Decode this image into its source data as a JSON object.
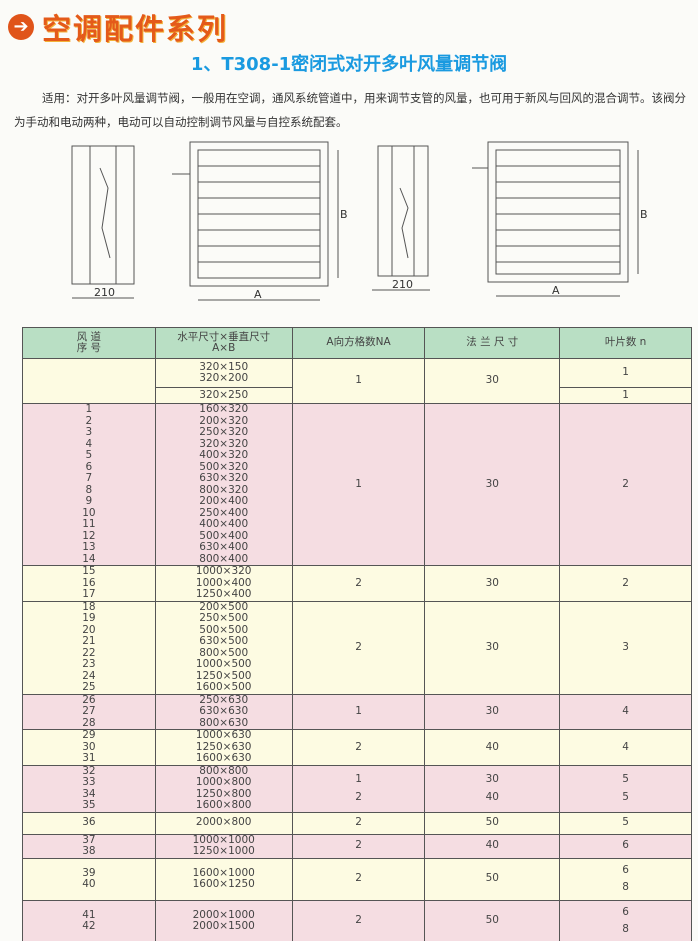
{
  "header": {
    "series_title": "空调配件系列",
    "arrow_icon": "arrow-right-circle-icon",
    "title": "1、T308-1密闭式对开多叶风量调节阀"
  },
  "description": "适用：对开多叶风量调节阀，一般用在空调，通风系统管道中，用来调节支管的风量，也可用于新风与回风的混合调节。该阀分为手动和电动两种，电动可以自动控制调节风量与自控系统配套。",
  "drawings": {
    "dim_depth": "210",
    "dim_width": "A",
    "dim_height": "B"
  },
  "colors": {
    "title": "#e45a1a",
    "subtitle": "#1a9ae0",
    "header_bg": "#b9dfc4",
    "row_yellow": "#fdfbe2",
    "row_pink": "#f5dde2"
  },
  "table": {
    "headers": [
      "风 道\n序 号",
      "水平尺寸×垂直尺寸\nA×B",
      "A向方格数NA",
      "法 兰 尺 寸",
      "叶片数 n"
    ],
    "groups": [
      {
        "bg": "y",
        "no": [],
        "sizes": [
          [
            "320×150",
            "320×200"
          ],
          [
            "320×250"
          ]
        ],
        "na": [
          "1"
        ],
        "flange": [
          "30"
        ],
        "n": [
          "1",
          "1"
        ],
        "split": true
      },
      {
        "bg": "p",
        "no": [
          "1",
          "2",
          "3",
          "4",
          "5",
          "6",
          "7",
          "8",
          "9",
          "10",
          "11",
          "12",
          "13",
          "14"
        ],
        "sizes": [
          [
            "160×320",
            "200×320",
            "250×320",
            "320×320",
            "400×320",
            "500×320",
            "630×320",
            "800×320",
            "200×400",
            "250×400",
            "400×400",
            "500×400",
            "630×400",
            "800×400"
          ]
        ],
        "na": [
          "1"
        ],
        "flange": [
          "30"
        ],
        "n": [
          "2"
        ]
      },
      {
        "bg": "y",
        "no": [
          "15",
          "16",
          "17"
        ],
        "sizes": [
          [
            "1000×320",
            "1000×400",
            "1250×400"
          ]
        ],
        "na": [
          "2"
        ],
        "flange": [
          "30"
        ],
        "n": [
          "2"
        ]
      },
      {
        "bg": "y",
        "no": [
          "18",
          "19",
          "20",
          "21",
          "22",
          "23",
          "24",
          "25"
        ],
        "sizes": [
          [
            "200×500",
            "250×500",
            "500×500",
            "630×500",
            "800×500",
            "1000×500",
            "1250×500",
            "1600×500"
          ]
        ],
        "na": [
          "2"
        ],
        "flange": [
          "30"
        ],
        "n": [
          "3"
        ]
      },
      {
        "bg": "p",
        "no": [
          "26",
          "27",
          "28"
        ],
        "sizes": [
          [
            "250×630",
            "630×630",
            "800×630"
          ]
        ],
        "na": [
          "1"
        ],
        "flange": [
          "30"
        ],
        "n": [
          "4"
        ]
      },
      {
        "bg": "y",
        "no": [
          "29",
          "30",
          "31"
        ],
        "sizes": [
          [
            "1000×630",
            "1250×630",
            "1600×630"
          ]
        ],
        "na": [
          "2"
        ],
        "flange": [
          "40"
        ],
        "n": [
          "4"
        ]
      },
      {
        "bg": "p",
        "no": [
          "32",
          "33",
          "34",
          "35"
        ],
        "sizes": [
          [
            "800×800",
            "1000×800",
            "1250×800",
            "1600×800"
          ]
        ],
        "na": [
          "1",
          "2"
        ],
        "flange": [
          "30",
          "40"
        ],
        "n": [
          "5",
          "5"
        ]
      },
      {
        "bg": "y",
        "no": [
          "36"
        ],
        "sizes": [
          [
            "2000×800"
          ]
        ],
        "na": [
          "2"
        ],
        "flange": [
          "50"
        ],
        "n": [
          "5"
        ]
      },
      {
        "bg": "p",
        "no": [
          "37",
          "38"
        ],
        "sizes": [
          [
            "1000×1000",
            "1250×1000"
          ]
        ],
        "na": [
          "2"
        ],
        "flange": [
          "40"
        ],
        "n": [
          "6"
        ]
      },
      {
        "bg": "y",
        "no": [
          "39",
          "40"
        ],
        "sizes": [
          [
            "1600×1000",
            "1600×1250"
          ]
        ],
        "na": [
          "2"
        ],
        "flange": [
          "50"
        ],
        "n": [
          "6",
          "8"
        ]
      },
      {
        "bg": "p",
        "no": [
          "41",
          "42"
        ],
        "sizes": [
          [
            "2000×1000",
            "2000×1500"
          ]
        ],
        "na": [
          "2"
        ],
        "flange": [
          "50"
        ],
        "n": [
          "6",
          "8"
        ]
      }
    ]
  }
}
